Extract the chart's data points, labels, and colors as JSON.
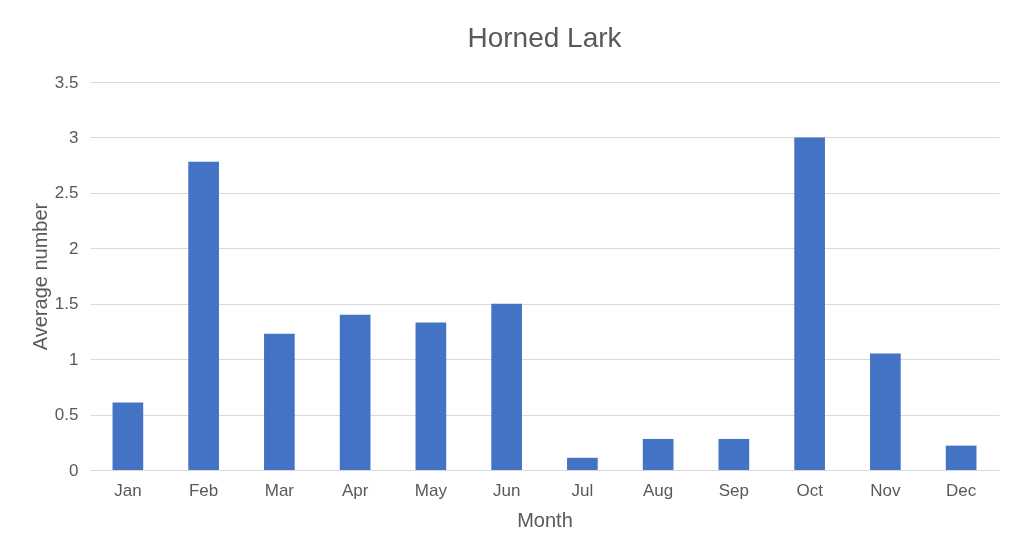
{
  "chart_data": {
    "type": "bar",
    "title": "Horned Lark",
    "xlabel": "Month",
    "ylabel": "Average number",
    "categories": [
      "Jan",
      "Feb",
      "Mar",
      "Apr",
      "May",
      "Jun",
      "Jul",
      "Aug",
      "Sep",
      "Oct",
      "Nov",
      "Dec"
    ],
    "values": [
      0.61,
      2.78,
      1.23,
      1.4,
      1.33,
      1.5,
      0.11,
      0.28,
      0.28,
      3.0,
      1.05,
      0.22
    ],
    "color": "#4472c4",
    "ylim": [
      0,
      3.5
    ],
    "yticks": [
      0,
      0.5,
      1,
      1.5,
      2,
      2.5,
      3,
      3.5
    ],
    "grid": "y"
  }
}
